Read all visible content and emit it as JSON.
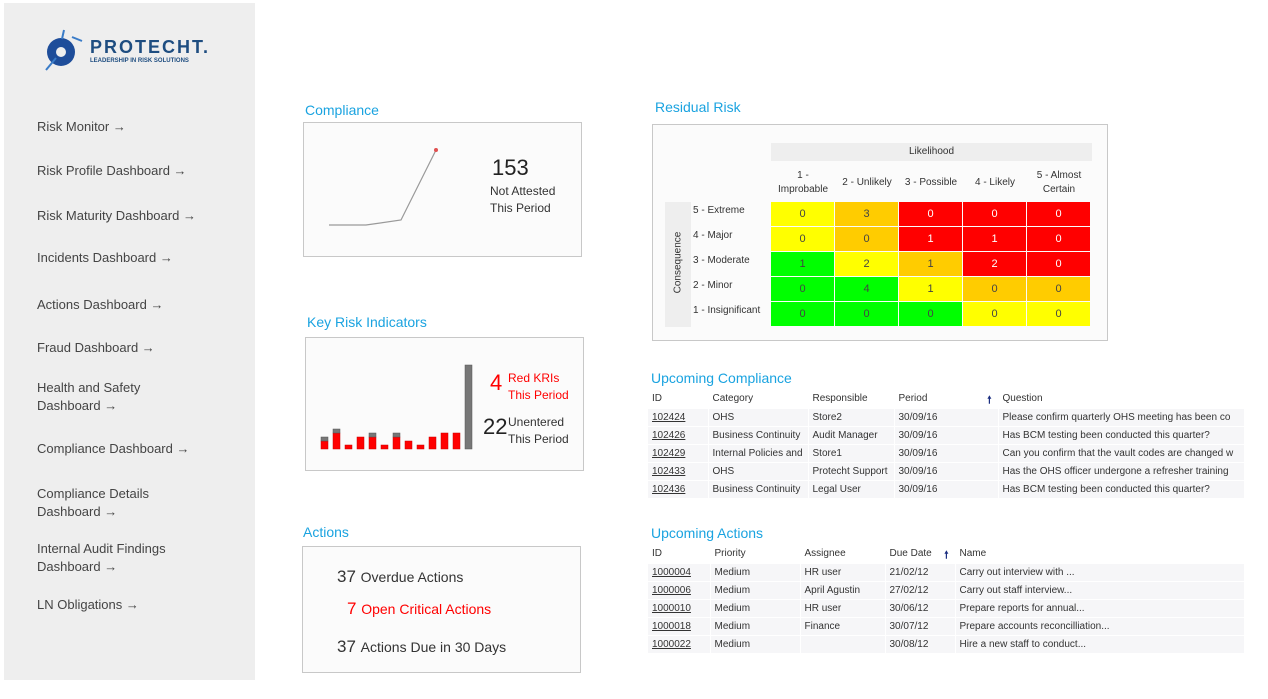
{
  "logo": {
    "brand": "PROTECHT.",
    "tagline": "LEADERSHIP IN RISK SOLUTIONS"
  },
  "nav": [
    "Risk Monitor →",
    "Risk Profile Dashboard →",
    "Risk Maturity Dashboard →",
    "Incidents Dashboard →",
    "Actions Dashboard →",
    "Fraud Dashboard →",
    "Health and Safety Dashboard →",
    "Compliance Dashboard →",
    "Compliance Details Dashboard →",
    "Internal Audit Findings Dashboard →",
    "LN Obligations →"
  ],
  "compliance": {
    "title": "Compliance",
    "value": "153",
    "label1": "Not Attested",
    "label2": "This Period",
    "trend": [
      0,
      0,
      4,
      60
    ],
    "colors": {
      "line": "#999999",
      "marker": "#e05050"
    }
  },
  "kri": {
    "title": "Key Risk Indicators",
    "red_count": "4",
    "red_label1": "Red KRIs",
    "red_label2": "This Period",
    "unentered_count": "22",
    "unentered_label1": "Unentered",
    "unentered_label2": "This Period",
    "bars_red": [
      2,
      4,
      1,
      3,
      3,
      1,
      3,
      2,
      1,
      3,
      4,
      4,
      0
    ],
    "bars_grey": [
      1,
      1,
      0,
      0,
      1,
      0,
      1,
      0,
      0,
      0,
      0,
      0,
      21
    ],
    "colors": {
      "red": "#ff0000",
      "grey": "#777777"
    }
  },
  "actions": {
    "title": "Actions",
    "items": [
      {
        "count": "37",
        "label": "Overdue Actions",
        "critical": false
      },
      {
        "count": "7",
        "label": "Open Critical Actions",
        "critical": true
      },
      {
        "count": "37",
        "label": "Actions Due in 30 Days",
        "critical": false
      }
    ]
  },
  "residual": {
    "title": "Residual Risk",
    "likelihood_label": "Likelihood",
    "consequence_label": "Consequence",
    "columns": [
      "1 - Improbable",
      "2 - Unlikely",
      "3 - Possible",
      "4 - Likely",
      "5 - Almost Certain"
    ],
    "rows": [
      {
        "label": "5 - Extreme",
        "values": [
          "0",
          "3",
          "0",
          "0",
          "0"
        ],
        "colors": [
          "#ffff00",
          "#ffcc00",
          "#ff0000",
          "#ff0000",
          "#ff0000"
        ]
      },
      {
        "label": "4 - Major",
        "values": [
          "0",
          "0",
          "1",
          "1",
          "0"
        ],
        "colors": [
          "#ffff00",
          "#ffcc00",
          "#ff0000",
          "#ff0000",
          "#ff0000"
        ]
      },
      {
        "label": "3 - Moderate",
        "values": [
          "1",
          "2",
          "1",
          "2",
          "0"
        ],
        "colors": [
          "#00ff00",
          "#ffff00",
          "#ffcc00",
          "#ff0000",
          "#ff0000"
        ]
      },
      {
        "label": "2 - Minor",
        "values": [
          "0",
          "4",
          "1",
          "0",
          "0"
        ],
        "colors": [
          "#00ff00",
          "#00ff00",
          "#ffff00",
          "#ffcc00",
          "#ffcc00"
        ]
      },
      {
        "label": "1 - Insignificant",
        "values": [
          "0",
          "0",
          "0",
          "0",
          "0"
        ],
        "colors": [
          "#00ff00",
          "#00ff00",
          "#00ff00",
          "#ffff00",
          "#ffff00"
        ]
      }
    ]
  },
  "upcoming_compliance": {
    "title": "Upcoming Compliance",
    "headers": [
      "ID",
      "Category",
      "Responsible",
      "Period",
      "Question"
    ],
    "rows": [
      [
        "102424",
        "OHS",
        "Store2",
        "30/09/16",
        "Please confirm quarterly OHS meeting has been co"
      ],
      [
        "102426",
        "Business Continuity",
        "Audit Manager",
        "30/09/16",
        "Has BCM testing been conducted this quarter?"
      ],
      [
        "102429",
        "Internal Policies and",
        "Store1",
        "30/09/16",
        "Can you confirm that the vault codes are changed w"
      ],
      [
        "102433",
        "OHS",
        "Protecht Support",
        "30/09/16",
        "Has the OHS officer undergone a refresher training"
      ],
      [
        "102436",
        "Business Continuity",
        "Legal User",
        "30/09/16",
        "Has BCM testing been conducted this quarter?"
      ]
    ]
  },
  "upcoming_actions": {
    "title": "Upcoming Actions",
    "headers": [
      "ID",
      "Priority",
      "Assignee",
      "Due Date",
      "Name"
    ],
    "rows": [
      [
        "1000004",
        "Medium",
        "HR user",
        "21/02/12",
        "Carry out interview with ..."
      ],
      [
        "1000006",
        "Medium",
        "April Agustin",
        "27/02/12",
        "Carry out staff interview..."
      ],
      [
        "1000010",
        "Medium",
        "HR user",
        "30/06/12",
        "Prepare reports for annual..."
      ],
      [
        "1000018",
        "Medium",
        "Finance",
        "30/07/12",
        "Prepare accounts reconcilliation..."
      ],
      [
        "1000022",
        "Medium",
        "",
        "30/08/12",
        "Hire a new staff to conduct..."
      ]
    ]
  }
}
